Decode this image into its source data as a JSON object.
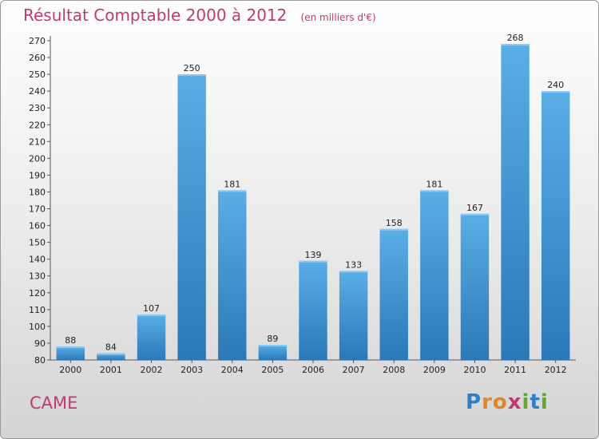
{
  "header": {
    "title": "Résultat Comptable 2000 à 2012",
    "subtitle": "(en milliers d'€)"
  },
  "footer": {
    "commune": "CAME",
    "logo_text": "Proxiti"
  },
  "colors": {
    "accent": "#c03a70",
    "bar_top": "#5aaee6",
    "bar_bottom": "#2a78b8",
    "logo_letters": [
      "#2f80c8",
      "#e0862a",
      "#e0862a",
      "#c03a70",
      "#60a830",
      "#2f80c8",
      "#60a830"
    ]
  },
  "chart_data": {
    "type": "bar",
    "title": "Résultat Comptable 2000 à 2012",
    "subtitle": "(en milliers d'€)",
    "categories": [
      "2000",
      "2001",
      "2002",
      "2003",
      "2004",
      "2005",
      "2006",
      "2007",
      "2008",
      "2009",
      "2010",
      "2011",
      "2012"
    ],
    "values": [
      88,
      84,
      107,
      250,
      181,
      89,
      139,
      133,
      158,
      181,
      167,
      268,
      240
    ],
    "ylim": [
      80,
      270
    ],
    "ytick_step": 10,
    "grid": false,
    "data_labels": true
  }
}
